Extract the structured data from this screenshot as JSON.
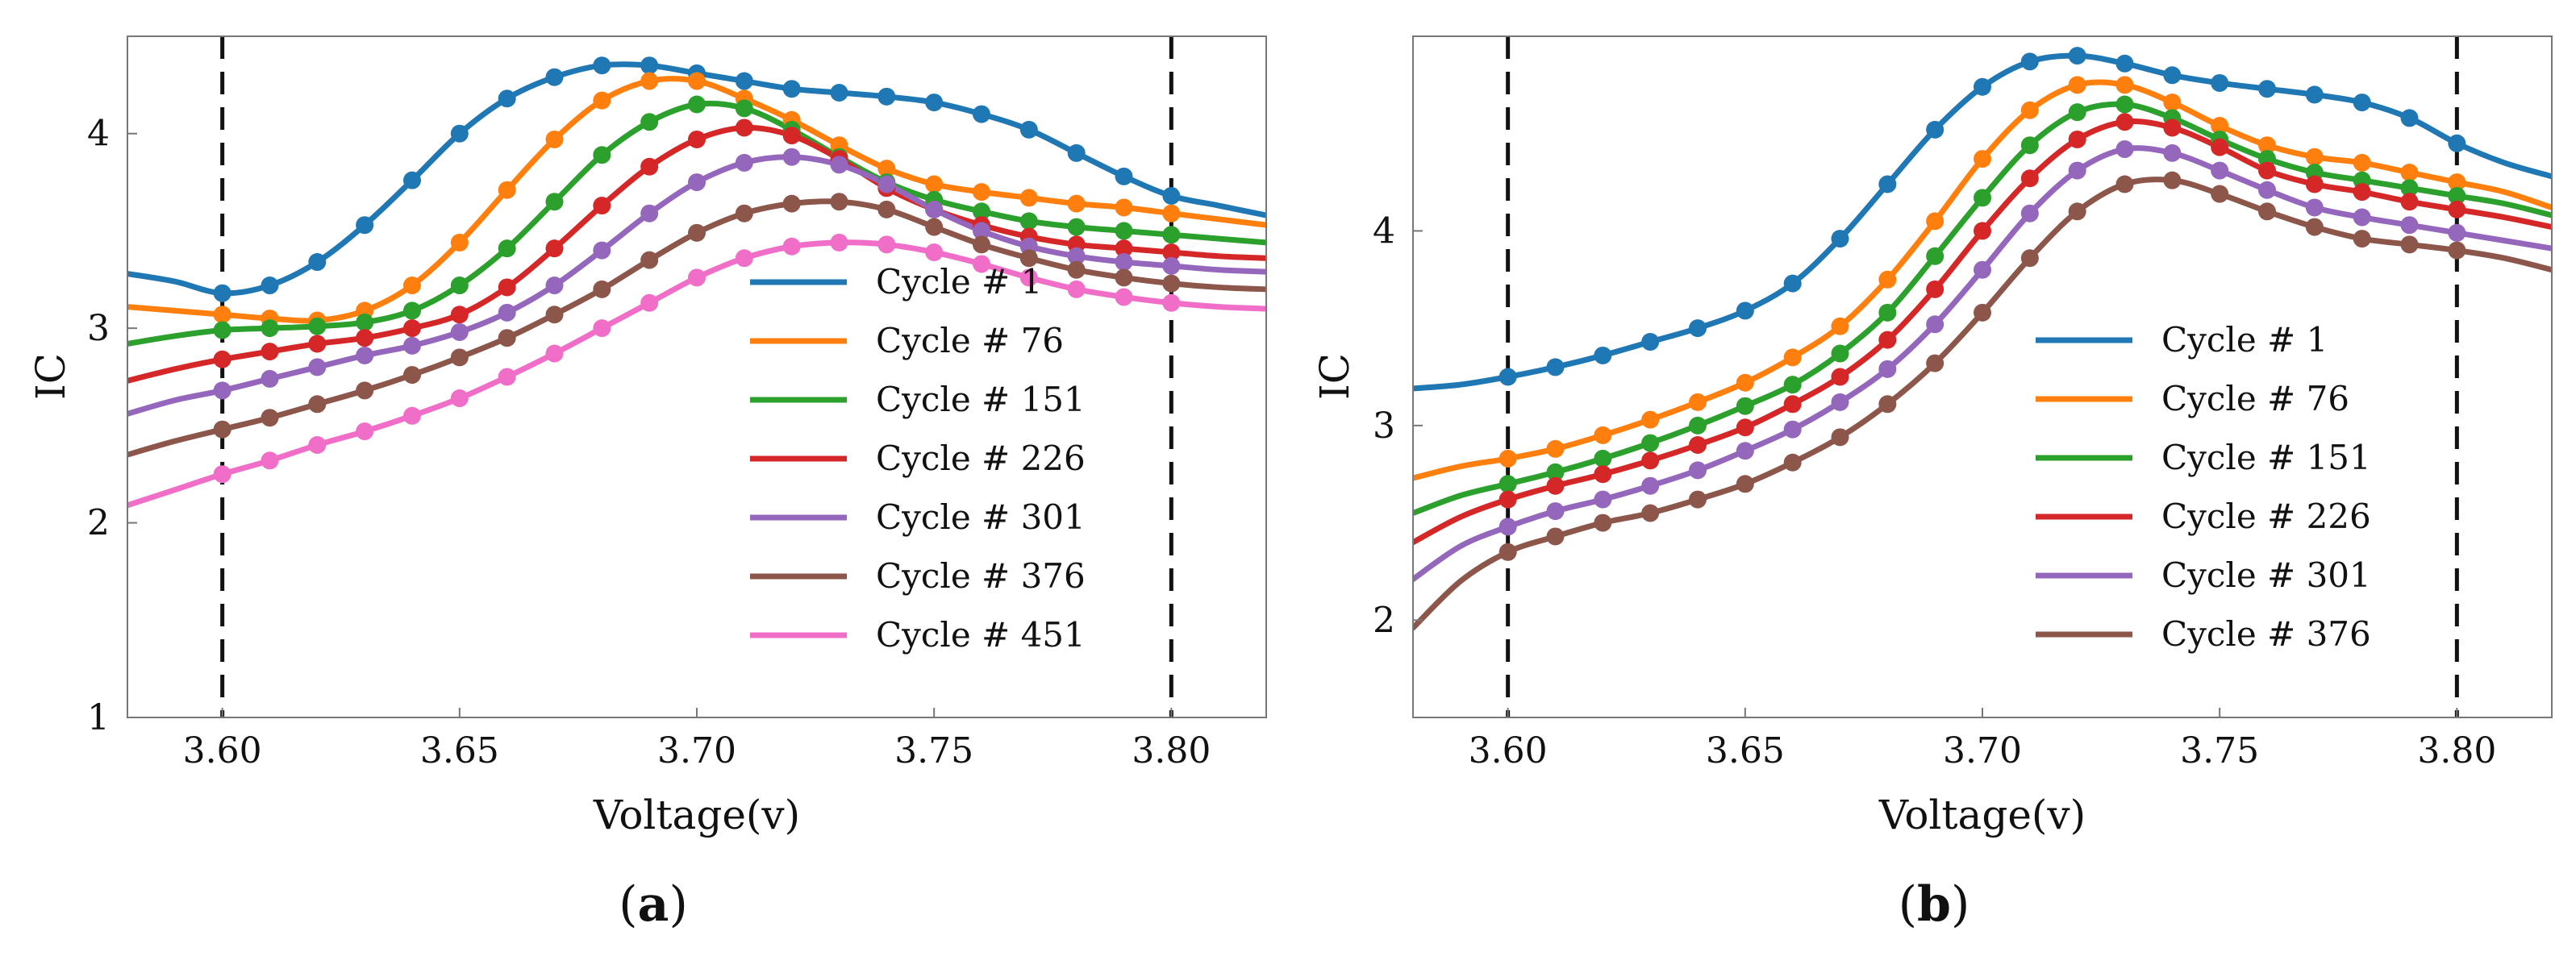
{
  "chart_data": [
    {
      "type": "line",
      "panel_label": "a",
      "title": "",
      "xlabel": "Voltage(v)",
      "ylabel": "IC",
      "xlim": [
        3.58,
        3.82
      ],
      "ylim": [
        1.0,
        4.5
      ],
      "xticks": [
        "3.60",
        "3.65",
        "3.70",
        "3.75",
        "3.80"
      ],
      "xtick_values": [
        3.6,
        3.65,
        3.7,
        3.75,
        3.8
      ],
      "yticks": [
        "1",
        "2",
        "3",
        "4"
      ],
      "ytick_values": [
        1,
        2,
        3,
        4
      ],
      "vlines": [
        3.6,
        3.8
      ],
      "marker_x": [
        3.6,
        3.61,
        3.62,
        3.63,
        3.64,
        3.65,
        3.66,
        3.67,
        3.68,
        3.69,
        3.7,
        3.71,
        3.72,
        3.73,
        3.74,
        3.75,
        3.76,
        3.77,
        3.78,
        3.79,
        3.8
      ],
      "x": [
        3.58,
        3.59,
        3.6,
        3.61,
        3.62,
        3.63,
        3.64,
        3.65,
        3.66,
        3.67,
        3.68,
        3.69,
        3.7,
        3.71,
        3.72,
        3.73,
        3.74,
        3.75,
        3.76,
        3.77,
        3.78,
        3.79,
        3.8,
        3.81,
        3.82
      ],
      "legend_position": "right-middle",
      "series": [
        {
          "name": "Cycle # 1",
          "color": "#1f77b4",
          "values": [
            3.28,
            3.24,
            3.18,
            3.22,
            3.34,
            3.53,
            3.76,
            4.0,
            4.18,
            4.29,
            4.35,
            4.35,
            4.31,
            4.27,
            4.23,
            4.21,
            4.19,
            4.16,
            4.1,
            4.02,
            3.9,
            3.78,
            3.68,
            3.63,
            3.58
          ]
        },
        {
          "name": "Cycle # 76",
          "color": "#ff7f0e",
          "values": [
            3.11,
            3.09,
            3.07,
            3.05,
            3.04,
            3.09,
            3.22,
            3.44,
            3.71,
            3.97,
            4.17,
            4.27,
            4.27,
            4.18,
            4.07,
            3.94,
            3.82,
            3.74,
            3.7,
            3.67,
            3.64,
            3.62,
            3.59,
            3.56,
            3.53
          ]
        },
        {
          "name": "Cycle # 151",
          "color": "#2ca02c",
          "values": [
            2.92,
            2.96,
            2.99,
            3.0,
            3.01,
            3.03,
            3.09,
            3.22,
            3.41,
            3.65,
            3.89,
            4.06,
            4.15,
            4.13,
            4.02,
            3.88,
            3.75,
            3.66,
            3.6,
            3.55,
            3.52,
            3.5,
            3.48,
            3.46,
            3.44
          ]
        },
        {
          "name": "Cycle # 226",
          "color": "#d62728",
          "values": [
            2.73,
            2.79,
            2.84,
            2.88,
            2.92,
            2.95,
            3.0,
            3.07,
            3.21,
            3.41,
            3.63,
            3.83,
            3.97,
            4.03,
            3.99,
            3.87,
            3.72,
            3.61,
            3.53,
            3.47,
            3.43,
            3.41,
            3.39,
            3.37,
            3.36
          ]
        },
        {
          "name": "Cycle # 301",
          "color": "#9467bd",
          "values": [
            2.56,
            2.63,
            2.68,
            2.74,
            2.8,
            2.86,
            2.91,
            2.98,
            3.08,
            3.22,
            3.4,
            3.59,
            3.75,
            3.85,
            3.88,
            3.84,
            3.74,
            3.61,
            3.5,
            3.42,
            3.37,
            3.34,
            3.32,
            3.3,
            3.29
          ]
        },
        {
          "name": "Cycle # 376",
          "color": "#8c564b",
          "values": [
            2.35,
            2.42,
            2.48,
            2.54,
            2.61,
            2.68,
            2.76,
            2.85,
            2.95,
            3.07,
            3.2,
            3.35,
            3.49,
            3.59,
            3.64,
            3.65,
            3.61,
            3.52,
            3.43,
            3.36,
            3.3,
            3.26,
            3.23,
            3.21,
            3.2
          ]
        },
        {
          "name": "Cycle # 451",
          "color": "#f06ec8",
          "values": [
            2.09,
            2.17,
            2.25,
            2.32,
            2.4,
            2.47,
            2.55,
            2.64,
            2.75,
            2.87,
            3.0,
            3.13,
            3.26,
            3.36,
            3.42,
            3.44,
            3.43,
            3.39,
            3.33,
            3.26,
            3.2,
            3.16,
            3.13,
            3.11,
            3.1
          ]
        }
      ]
    },
    {
      "type": "line",
      "panel_label": "b",
      "title": "",
      "xlabel": "Voltage(v)",
      "ylabel": "IC",
      "xlim": [
        3.58,
        3.82
      ],
      "ylim": [
        1.5,
        5.0
      ],
      "xticks": [
        "3.60",
        "3.65",
        "3.70",
        "3.75",
        "3.80"
      ],
      "xtick_values": [
        3.6,
        3.65,
        3.7,
        3.75,
        3.8
      ],
      "yticks": [
        "2",
        "3",
        "4"
      ],
      "ytick_values": [
        2,
        3,
        4
      ],
      "vlines": [
        3.6,
        3.8
      ],
      "marker_x": [
        3.6,
        3.61,
        3.62,
        3.63,
        3.64,
        3.65,
        3.66,
        3.67,
        3.68,
        3.69,
        3.7,
        3.71,
        3.72,
        3.73,
        3.74,
        3.75,
        3.76,
        3.77,
        3.78,
        3.79,
        3.8
      ],
      "x": [
        3.58,
        3.59,
        3.6,
        3.61,
        3.62,
        3.63,
        3.64,
        3.65,
        3.66,
        3.67,
        3.68,
        3.69,
        3.7,
        3.71,
        3.72,
        3.73,
        3.74,
        3.75,
        3.76,
        3.77,
        3.78,
        3.79,
        3.8,
        3.81,
        3.82
      ],
      "legend_position": "right-middle",
      "series": [
        {
          "name": "Cycle # 1",
          "color": "#1f77b4",
          "values": [
            3.19,
            3.21,
            3.25,
            3.3,
            3.36,
            3.43,
            3.5,
            3.59,
            3.73,
            3.96,
            4.24,
            4.52,
            4.74,
            4.87,
            4.9,
            4.86,
            4.8,
            4.76,
            4.73,
            4.7,
            4.66,
            4.58,
            4.45,
            4.35,
            4.28
          ]
        },
        {
          "name": "Cycle # 76",
          "color": "#ff7f0e",
          "values": [
            2.73,
            2.79,
            2.83,
            2.88,
            2.95,
            3.03,
            3.12,
            3.22,
            3.35,
            3.51,
            3.75,
            4.05,
            4.37,
            4.62,
            4.75,
            4.75,
            4.66,
            4.54,
            4.44,
            4.38,
            4.35,
            4.3,
            4.25,
            4.2,
            4.12
          ]
        },
        {
          "name": "Cycle # 151",
          "color": "#2ca02c",
          "values": [
            2.55,
            2.64,
            2.7,
            2.76,
            2.83,
            2.91,
            3.0,
            3.1,
            3.21,
            3.37,
            3.58,
            3.87,
            4.17,
            4.44,
            4.61,
            4.65,
            4.58,
            4.47,
            4.37,
            4.3,
            4.26,
            4.22,
            4.18,
            4.14,
            4.08
          ]
        },
        {
          "name": "Cycle # 226",
          "color": "#d62728",
          "values": [
            2.4,
            2.53,
            2.62,
            2.69,
            2.75,
            2.82,
            2.9,
            2.99,
            3.11,
            3.25,
            3.44,
            3.7,
            4.0,
            4.27,
            4.47,
            4.56,
            4.53,
            4.43,
            4.31,
            4.24,
            4.2,
            4.15,
            4.11,
            4.07,
            4.02
          ]
        },
        {
          "name": "Cycle # 301",
          "color": "#9467bd",
          "values": [
            2.21,
            2.38,
            2.48,
            2.56,
            2.62,
            2.69,
            2.77,
            2.87,
            2.98,
            3.12,
            3.29,
            3.52,
            3.8,
            4.09,
            4.31,
            4.42,
            4.4,
            4.31,
            4.21,
            4.12,
            4.07,
            4.03,
            3.99,
            3.95,
            3.91
          ]
        },
        {
          "name": "Cycle # 376",
          "color": "#8c564b",
          "values": [
            1.96,
            2.2,
            2.35,
            2.43,
            2.5,
            2.55,
            2.62,
            2.7,
            2.81,
            2.94,
            3.11,
            3.32,
            3.58,
            3.86,
            4.1,
            4.24,
            4.26,
            4.19,
            4.1,
            4.02,
            3.96,
            3.93,
            3.9,
            3.86,
            3.8
          ]
        }
      ]
    }
  ]
}
